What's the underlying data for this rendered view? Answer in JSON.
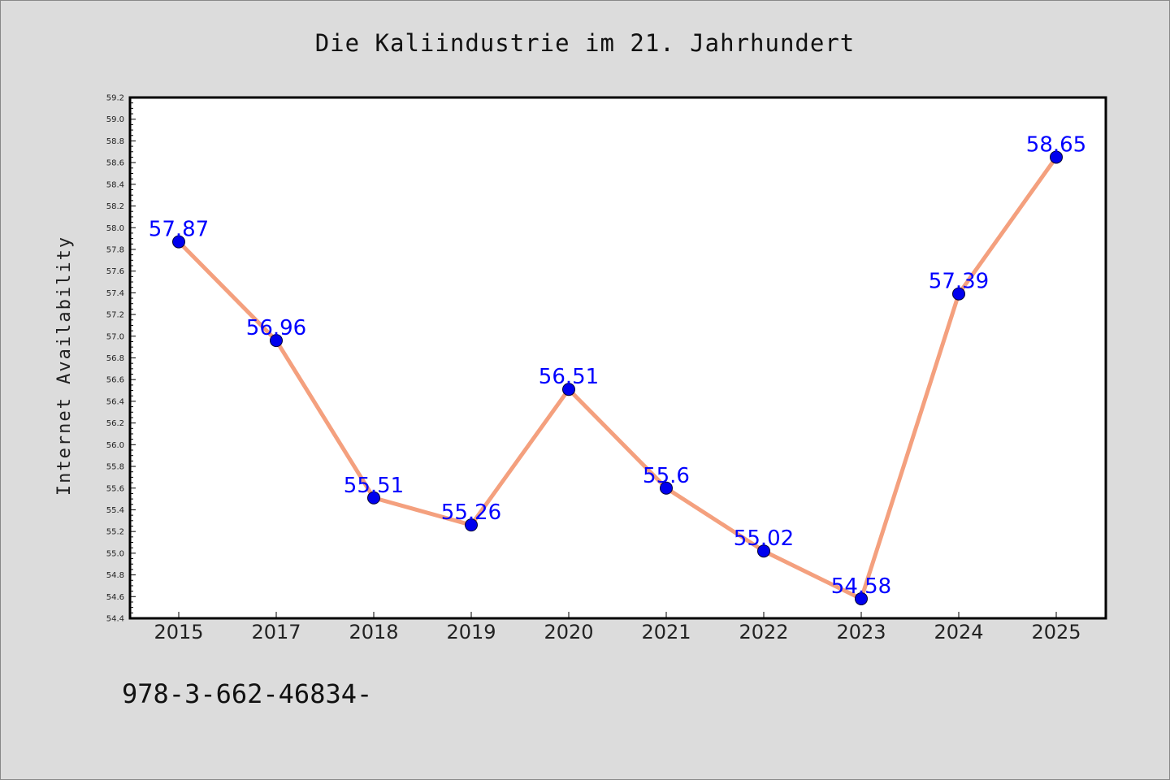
{
  "chart_data": {
    "type": "line",
    "title": "Die Kaliindustrie im 21. Jahrhundert",
    "xlabel": "",
    "ylabel": "Internet Availability",
    "categories": [
      "2015",
      "2017",
      "2018",
      "2019",
      "2020",
      "2021",
      "2022",
      "2023",
      "2024",
      "2025"
    ],
    "series": [
      {
        "values": [
          57.87,
          56.96,
          55.51,
          55.26,
          56.51,
          55.6,
          55.02,
          54.58,
          57.39,
          58.65
        ],
        "data_labels": [
          "57.87",
          "56.96",
          "55.51",
          "55.26",
          "56.51",
          "55.6",
          "55.02",
          "54.58",
          "57.39",
          "58.65"
        ],
        "line_color": "#f4a07e",
        "marker_color": "#0000ee"
      }
    ],
    "ylim": [
      54.4,
      59.2
    ],
    "yticks": [
      "54.4",
      "54.6",
      "54.8",
      "55.0",
      "55.2",
      "55.4",
      "55.6",
      "55.8",
      "56.0",
      "56.2",
      "56.4",
      "56.6",
      "56.8",
      "57.0",
      "57.2",
      "57.4",
      "57.6",
      "57.8",
      "58.0",
      "58.2",
      "58.4",
      "58.6",
      "58.8",
      "59.0",
      "59.2"
    ],
    "grid": false,
    "data_label_color": "#0000ff",
    "background_color": "#dcdcdc",
    "plot_background_color": "#ffffff"
  },
  "footer": {
    "text": "978-3-662-46834-"
  }
}
